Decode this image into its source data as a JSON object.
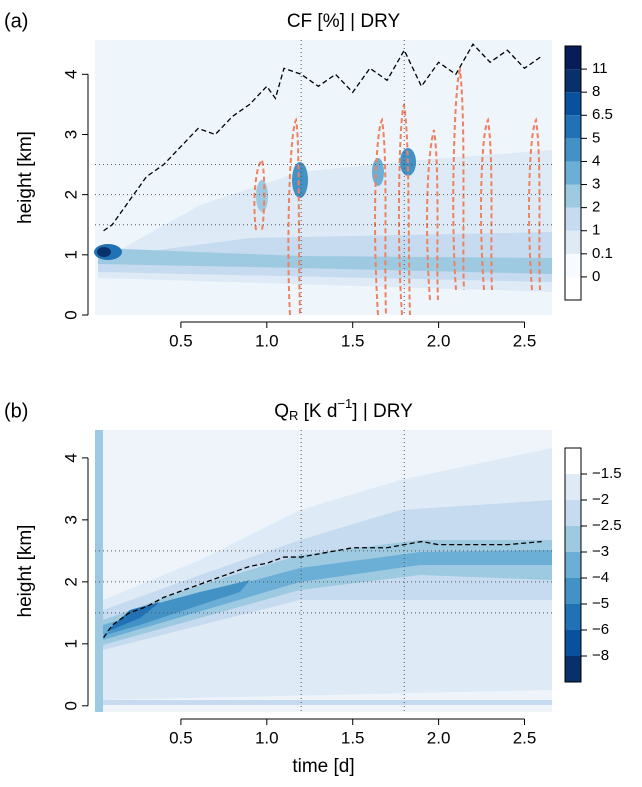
{
  "chart_data": [
    {
      "type": "contour",
      "panel_label": "(a)",
      "title": "CF [%] | DRY",
      "ylabel": "height [km]",
      "xlim": [
        0,
        2.66
      ],
      "ylim": [
        0,
        4.57
      ],
      "xticks": [
        0.5,
        {
          "value": 1,
          "label": "1.0"
        },
        1.5,
        {
          "value": 2,
          "label": "2.0"
        },
        2.5
      ],
      "yticks": [
        0,
        1,
        2,
        3,
        4
      ],
      "hlines": [
        1.5,
        2,
        2.5
      ],
      "vlines": [
        1.2,
        1.8
      ],
      "line": {
        "color": "#000000",
        "x": [
          0.05,
          0.1,
          0.2,
          0.3,
          0.4,
          0.5,
          0.6,
          0.7,
          0.8,
          0.9,
          1.0,
          1.05,
          1.1,
          1.2,
          1.3,
          1.4,
          1.5,
          1.6,
          1.7,
          1.8,
          1.9,
          2.0,
          2.1,
          2.2,
          2.3,
          2.4,
          2.5,
          2.6
        ],
        "values": [
          1.4,
          1.5,
          1.9,
          2.3,
          2.5,
          2.8,
          3.1,
          3.0,
          3.3,
          3.5,
          3.8,
          3.6,
          4.1,
          4.0,
          3.8,
          4.0,
          3.7,
          4.1,
          3.9,
          4.4,
          3.8,
          4.2,
          4.0,
          4.5,
          4.2,
          4.4,
          4.1,
          4.3
        ]
      },
      "colorbar": {
        "colors": [
          "#ffffff",
          "#f7fbff",
          "#deebf7",
          "#c6dbef",
          "#9ecae1",
          "#6baed6",
          "#4292c6",
          "#2171b5",
          "#08519c",
          "#08306b",
          "#081d58"
        ],
        "ticks": [
          0,
          0.1,
          1,
          2,
          3,
          4,
          5,
          6.5,
          8,
          11
        ]
      }
    },
    {
      "type": "contour",
      "panel_label": "(b)",
      "title": {
        "main": "Q",
        "sub": "R",
        "unit": " [K d",
        "sup": "−1",
        "rest": "] | DRY"
      },
      "ylabel": "height [km]",
      "xlabel": "time [d]",
      "xlim": [
        0,
        2.66
      ],
      "ylim": [
        -0.1,
        4.45
      ],
      "xticks": [
        0.5,
        {
          "value": 1,
          "label": "1.0"
        },
        1.5,
        {
          "value": 2,
          "label": "2.0"
        },
        2.5
      ],
      "yticks": [
        0,
        1,
        2,
        3,
        4
      ],
      "hlines": [
        1.5,
        2,
        2.5
      ],
      "vlines": [
        1.2,
        1.8
      ],
      "line": {
        "color": "#000000",
        "x": [
          0.05,
          0.1,
          0.2,
          0.3,
          0.4,
          0.5,
          0.6,
          0.7,
          0.8,
          0.9,
          1.0,
          1.1,
          1.2,
          1.3,
          1.4,
          1.5,
          1.6,
          1.7,
          1.8,
          1.9,
          2.0,
          2.2,
          2.4,
          2.6
        ],
        "values": [
          1.1,
          1.3,
          1.5,
          1.6,
          1.75,
          1.85,
          1.95,
          2.05,
          2.15,
          2.25,
          2.3,
          2.4,
          2.4,
          2.45,
          2.5,
          2.55,
          2.55,
          2.55,
          2.6,
          2.65,
          2.6,
          2.6,
          2.6,
          2.65
        ]
      },
      "colorbar": {
        "colors": [
          "#08306b",
          "#08519c",
          "#2171b5",
          "#4292c6",
          "#6baed6",
          "#9ecae1",
          "#c6dbef",
          "#deebf7",
          "#ffffff"
        ],
        "ticks": [
          {
            "value": -8,
            "label": "−8"
          },
          {
            "value": -6,
            "label": "−6"
          },
          {
            "value": -5,
            "label": "−5"
          },
          {
            "value": -4,
            "label": "−4"
          },
          {
            "value": -3,
            "label": "−3"
          },
          {
            "value": -2.5,
            "label": "−2.5"
          },
          {
            "value": -2,
            "label": "−2"
          },
          {
            "value": -1.5,
            "label": "−1.5"
          }
        ]
      }
    }
  ]
}
